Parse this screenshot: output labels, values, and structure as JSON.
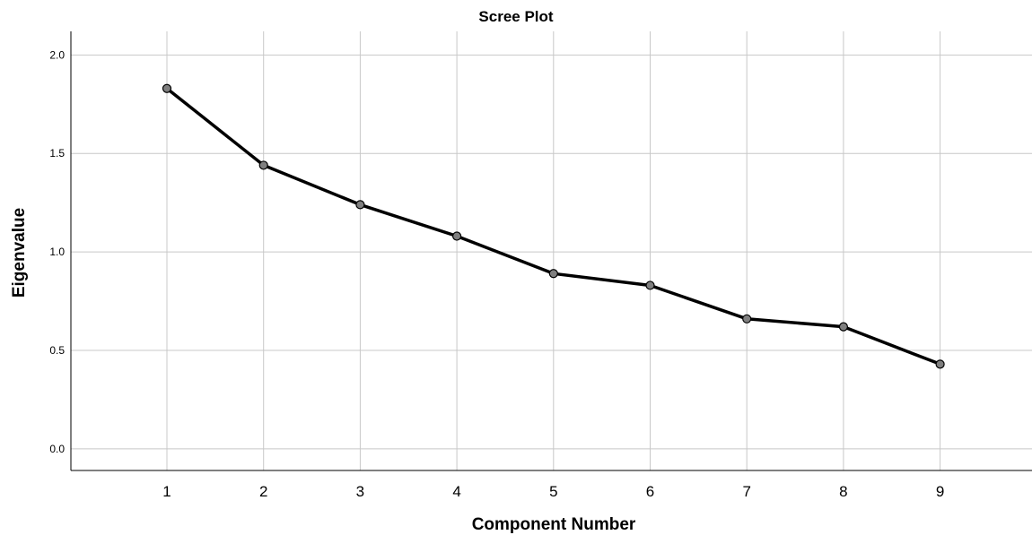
{
  "chart_data": {
    "type": "line",
    "title": "Scree Plot",
    "xlabel": "Component Number",
    "ylabel": "Eigenvalue",
    "x": [
      1,
      2,
      3,
      4,
      5,
      6,
      7,
      8,
      9
    ],
    "series": [
      {
        "values": [
          1.83,
          1.44,
          1.24,
          1.08,
          0.89,
          0.83,
          0.66,
          0.62,
          0.43
        ]
      }
    ],
    "xticks": [
      "1",
      "2",
      "3",
      "4",
      "5",
      "6",
      "7",
      "8",
      "9"
    ],
    "yticks": [
      "0.0",
      "0.5",
      "1.0",
      "1.5",
      "2.0"
    ],
    "ylim": [
      -0.11,
      2.12
    ],
    "xlim": [
      0,
      10
    ],
    "grid": true,
    "line_color": "#000000",
    "marker_color": "#7f7f7f",
    "grid_color": "#c8c8c8"
  }
}
